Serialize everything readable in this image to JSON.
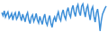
{
  "chart_data": {
    "type": "line",
    "categories": [
      null,
      null,
      null,
      null,
      null,
      null,
      null,
      null,
      null,
      null,
      null,
      null,
      null,
      null,
      null,
      null,
      null,
      null,
      null,
      null,
      null,
      null,
      null,
      null,
      null,
      null,
      null,
      null,
      null,
      null,
      null,
      null,
      null,
      null,
      null,
      null,
      null,
      null,
      null,
      null,
      null,
      null,
      null,
      null,
      null,
      null,
      null,
      null,
      null,
      null,
      null,
      null,
      null,
      null,
      null,
      null,
      null,
      null,
      null,
      null,
      null,
      null,
      null,
      null,
      null,
      null,
      null,
      null,
      null,
      null,
      null,
      null,
      null,
      null,
      null,
      null,
      null,
      null,
      null,
      null,
      null,
      null,
      null,
      null,
      null,
      null
    ],
    "values": [
      70,
      62,
      75,
      58,
      66,
      72,
      55,
      60,
      68,
      50,
      64,
      70,
      52,
      58,
      74,
      60,
      48,
      66,
      56,
      45,
      62,
      70,
      50,
      40,
      58,
      64,
      46,
      55,
      68,
      50,
      42,
      60,
      48,
      38,
      56,
      66,
      44,
      36,
      52,
      62,
      40,
      30,
      50,
      58,
      45,
      62,
      72,
      55,
      48,
      68,
      78,
      60,
      52,
      74,
      84,
      66,
      58,
      80,
      90,
      70,
      60,
      84,
      92,
      72,
      62,
      88,
      94,
      74,
      58,
      82,
      90,
      66,
      50,
      78,
      86,
      60,
      44,
      70,
      80,
      56,
      20,
      48,
      66,
      74,
      82,
      88
    ],
    "color": "#3d8fd8",
    "ylim": [
      0,
      100
    ],
    "grid": false,
    "tick_labels": false
  }
}
